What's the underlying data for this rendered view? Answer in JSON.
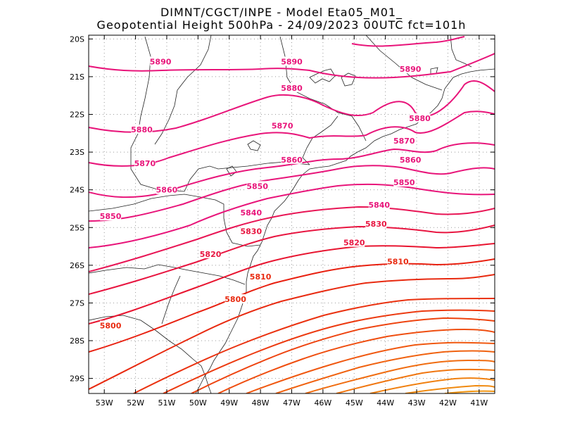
{
  "header": {
    "line1": "DIMNT/CGCT/INPE -  Model Eta05_M01_",
    "line2": "Geopotential Height 500hPa -  24/09/2023 00UTC fct=101h"
  },
  "axes": {
    "lat_labels": [
      "20S",
      "21S",
      "22S",
      "23S",
      "24S",
      "25S",
      "26S",
      "27S",
      "28S",
      "29S"
    ],
    "lon_labels": [
      "53W",
      "52W",
      "51W",
      "50W",
      "49W",
      "48W",
      "47W",
      "46W",
      "45W",
      "44W",
      "43W",
      "42W",
      "41W"
    ]
  },
  "chart_data": {
    "type": "contour",
    "variable": "Geopotential Height 500hPa",
    "units": "gpm",
    "contour_interval": 10,
    "lat_range": [
      -29.4,
      -19.9
    ],
    "lon_range": [
      -53.5,
      -40.5
    ],
    "labeled_levels": [
      {
        "value": "5890",
        "lon": -51.2,
        "lat": -20.6
      },
      {
        "value": "5890",
        "lon": -47.0,
        "lat": -20.6
      },
      {
        "value": "5890",
        "lon": -43.2,
        "lat": -20.8
      },
      {
        "value": "5880",
        "lon": -51.8,
        "lat": -22.4
      },
      {
        "value": "5880",
        "lon": -47.0,
        "lat": -21.3
      },
      {
        "value": "5880",
        "lon": -42.9,
        "lat": -22.1
      },
      {
        "value": "5870",
        "lon": -51.7,
        "lat": -23.3
      },
      {
        "value": "5870",
        "lon": -47.3,
        "lat": -22.3
      },
      {
        "value": "5870",
        "lon": -43.4,
        "lat": -22.7
      },
      {
        "value": "5860",
        "lon": -51.0,
        "lat": -24.0
      },
      {
        "value": "5860",
        "lon": -47.0,
        "lat": -23.2
      },
      {
        "value": "5860",
        "lon": -43.2,
        "lat": -23.2
      },
      {
        "value": "5850",
        "lon": -52.8,
        "lat": -24.7
      },
      {
        "value": "5850",
        "lon": -48.1,
        "lat": -23.9
      },
      {
        "value": "5850",
        "lon": -43.4,
        "lat": -23.8
      },
      {
        "value": "5840",
        "lon": -48.3,
        "lat": -24.6
      },
      {
        "value": "5840",
        "lon": -44.2,
        "lat": -24.4
      },
      {
        "value": "5830",
        "lon": -48.3,
        "lat": -25.1
      },
      {
        "value": "5830",
        "lon": -44.3,
        "lat": -24.9
      },
      {
        "value": "5820",
        "lon": -49.6,
        "lat": -25.7
      },
      {
        "value": "5820",
        "lon": -45.0,
        "lat": -25.4
      },
      {
        "value": "5810",
        "lon": -48.0,
        "lat": -26.3
      },
      {
        "value": "5810",
        "lon": -43.6,
        "lat": -25.9
      },
      {
        "value": "5800",
        "lon": -48.8,
        "lat": -26.9
      },
      {
        "value": "5800",
        "lon": -52.8,
        "lat": -27.6
      }
    ]
  }
}
